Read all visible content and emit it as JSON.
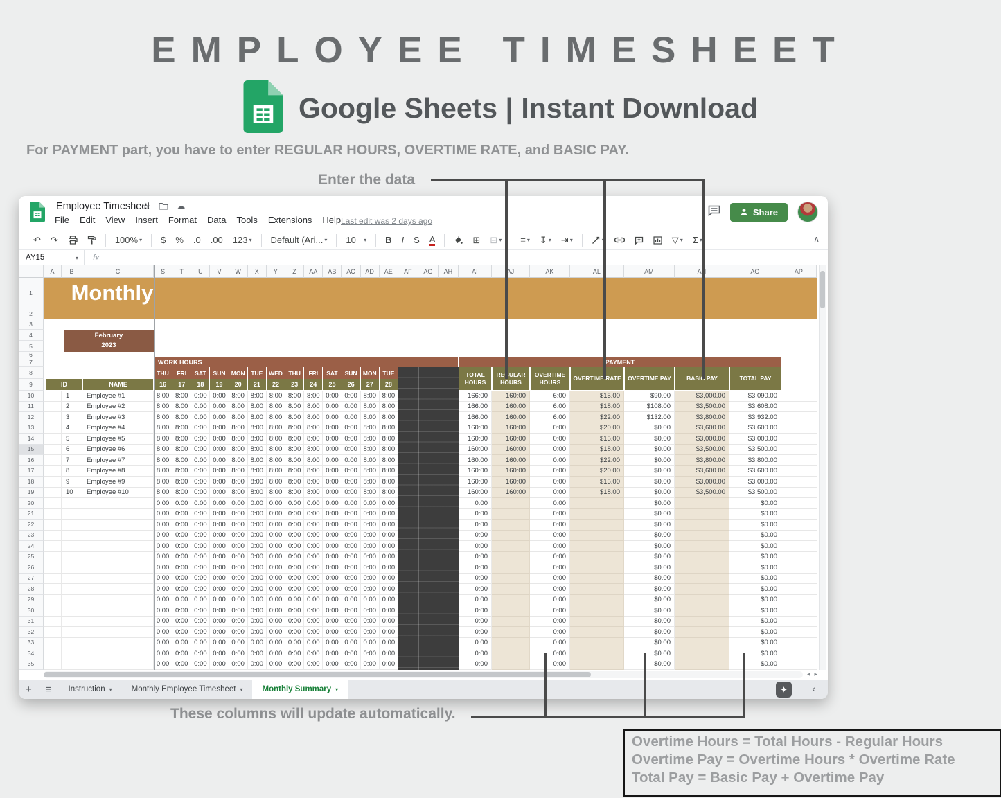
{
  "page": {
    "title": "EMPLOYEE TIMESHEET",
    "subtitle": "Google Sheets | Instant Download",
    "instruction": "For PAYMENT part, you have to enter REGULAR HOURS, OVERTIME RATE, and BASIC PAY.",
    "annotation_top": "Enter the data",
    "annotation_bottom": "These columns will update automatically.",
    "formula_box": [
      "Overtime Hours = Total Hours - Regular Hours",
      "Overtime Pay = Overtime Hours * Overtime Rate",
      "Total Pay = Basic Pay + Overtime Pay"
    ]
  },
  "colors": {
    "accent_tan": "#CE9B51",
    "brown": "#9B5F47",
    "month_brown": "#8A5A44",
    "olive": "#7B7845",
    "input_beige": "#EDE5D6",
    "dark_cell": "#3D3D3D",
    "sheets_green": "#23A566",
    "share_green": "#468B4A",
    "active_tab_green": "#188038"
  },
  "icons": {
    "undo": "↶",
    "redo": "↷",
    "borders": "⊞",
    "align": "≡",
    "valign": "↧",
    "wrap": "⇥",
    "filter": "▽",
    "functions": "Σ",
    "dropdown": "▾",
    "collapse": "∧",
    "star": "☆",
    "cloud": "☁",
    "add_sheet": "+",
    "all_sheets": "≡",
    "explore": "✦",
    "back": "‹",
    "scroll_left": "◂",
    "scroll_right": "▸"
  },
  "app": {
    "doc_title": "Employee Timesheet",
    "menus": [
      "File",
      "Edit",
      "View",
      "Insert",
      "Format",
      "Data",
      "Tools",
      "Extensions",
      "Help"
    ],
    "last_edit": "Last edit was 2 days ago",
    "share_label": "Share",
    "name_box": "AY15",
    "fx_label": "fx",
    "toolbar": {
      "zoom": "100%",
      "currency": "$",
      "percent": "%",
      "dec0": ".0",
      "dec00": ".00",
      "fmt123": "123",
      "font": "Default (Ari...",
      "font_size": "10",
      "bold": "B",
      "italic": "I",
      "strike": "S",
      "text_color": "A"
    },
    "tabs": [
      {
        "label": "Instruction",
        "active": false
      },
      {
        "label": "Monthly Employee Timesheet",
        "active": false
      },
      {
        "label": "Monthly Summary",
        "active": true
      }
    ]
  },
  "sheet": {
    "frozen_columns": [
      "A",
      "B",
      "C"
    ],
    "scroll_columns": [
      "S",
      "T",
      "U",
      "V",
      "W",
      "X",
      "Y",
      "Z",
      "AA",
      "AB",
      "AC",
      "AD",
      "AE",
      "AF",
      "AG",
      "AH",
      "AI",
      "AJ",
      "AK",
      "AL",
      "AM",
      "AN",
      "AO",
      "AP"
    ],
    "visible_rows": 35,
    "selected_row": 15,
    "banner": "Monthly",
    "month": "February",
    "year": "2023",
    "work_hours_label": "WORK HOURS",
    "payment_label": "PAYMENT",
    "id_label": "ID",
    "name_label": "NAME",
    "day_names": [
      "THU",
      "FRI",
      "SAT",
      "SUN",
      "MON",
      "TUE",
      "WED",
      "THU",
      "FRI",
      "SAT",
      "SUN",
      "MON",
      "TUE"
    ],
    "day_dates": [
      "16",
      "17",
      "18",
      "19",
      "20",
      "21",
      "22",
      "23",
      "24",
      "25",
      "26",
      "27",
      "28"
    ],
    "value_headers": [
      "TOTAL HOURS",
      "REGULAR HOURS",
      "OVERTIME HOURS",
      "OVERTIME RATE",
      "OVERTIME PAY",
      "BASIC PAY",
      "TOTAL PAY"
    ],
    "employees": [
      {
        "id": "1",
        "name": "Employee #1",
        "hours": [
          "8:00",
          "8:00",
          "0:00",
          "0:00",
          "8:00",
          "8:00",
          "8:00",
          "8:00",
          "8:00",
          "0:00",
          "0:00",
          "8:00",
          "8:00"
        ],
        "values": [
          "166:00",
          "160:00",
          "6:00",
          "$15.00",
          "$90.00",
          "$3,000.00",
          "$3,090.00"
        ]
      },
      {
        "id": "2",
        "name": "Employee #2",
        "hours": [
          "8:00",
          "8:00",
          "0:00",
          "0:00",
          "8:00",
          "8:00",
          "8:00",
          "8:00",
          "8:00",
          "0:00",
          "0:00",
          "8:00",
          "8:00"
        ],
        "values": [
          "166:00",
          "160:00",
          "6:00",
          "$18.00",
          "$108.00",
          "$3,500.00",
          "$3,608.00"
        ]
      },
      {
        "id": "3",
        "name": "Employee #3",
        "hours": [
          "8:00",
          "8:00",
          "0:00",
          "0:00",
          "8:00",
          "8:00",
          "8:00",
          "8:00",
          "8:00",
          "0:00",
          "0:00",
          "8:00",
          "8:00"
        ],
        "values": [
          "166:00",
          "160:00",
          "6:00",
          "$22.00",
          "$132.00",
          "$3,800.00",
          "$3,932.00"
        ]
      },
      {
        "id": "4",
        "name": "Employee #4",
        "hours": [
          "8:00",
          "8:00",
          "0:00",
          "0:00",
          "8:00",
          "8:00",
          "8:00",
          "8:00",
          "8:00",
          "0:00",
          "0:00",
          "8:00",
          "8:00"
        ],
        "values": [
          "160:00",
          "160:00",
          "0:00",
          "$20.00",
          "$0.00",
          "$3,600.00",
          "$3,600.00"
        ]
      },
      {
        "id": "5",
        "name": "Employee #5",
        "hours": [
          "8:00",
          "8:00",
          "0:00",
          "0:00",
          "8:00",
          "8:00",
          "8:00",
          "8:00",
          "8:00",
          "0:00",
          "0:00",
          "8:00",
          "8:00"
        ],
        "values": [
          "160:00",
          "160:00",
          "0:00",
          "$15.00",
          "$0.00",
          "$3,000.00",
          "$3,000.00"
        ]
      },
      {
        "id": "6",
        "name": "Employee #6",
        "hours": [
          "8:00",
          "8:00",
          "0:00",
          "0:00",
          "8:00",
          "8:00",
          "8:00",
          "8:00",
          "8:00",
          "0:00",
          "0:00",
          "8:00",
          "8:00"
        ],
        "values": [
          "160:00",
          "160:00",
          "0:00",
          "$18.00",
          "$0.00",
          "$3,500.00",
          "$3,500.00"
        ]
      },
      {
        "id": "7",
        "name": "Employee #7",
        "hours": [
          "8:00",
          "8:00",
          "0:00",
          "0:00",
          "8:00",
          "8:00",
          "8:00",
          "8:00",
          "8:00",
          "0:00",
          "0:00",
          "8:00",
          "8:00"
        ],
        "values": [
          "160:00",
          "160:00",
          "0:00",
          "$22.00",
          "$0.00",
          "$3,800.00",
          "$3,800.00"
        ]
      },
      {
        "id": "8",
        "name": "Employee #8",
        "hours": [
          "8:00",
          "8:00",
          "0:00",
          "0:00",
          "8:00",
          "8:00",
          "8:00",
          "8:00",
          "8:00",
          "0:00",
          "0:00",
          "8:00",
          "8:00"
        ],
        "values": [
          "160:00",
          "160:00",
          "0:00",
          "$20.00",
          "$0.00",
          "$3,600.00",
          "$3,600.00"
        ]
      },
      {
        "id": "9",
        "name": "Employee #9",
        "hours": [
          "8:00",
          "8:00",
          "0:00",
          "0:00",
          "8:00",
          "8:00",
          "8:00",
          "8:00",
          "8:00",
          "0:00",
          "0:00",
          "8:00",
          "8:00"
        ],
        "values": [
          "160:00",
          "160:00",
          "0:00",
          "$15.00",
          "$0.00",
          "$3,000.00",
          "$3,000.00"
        ]
      },
      {
        "id": "10",
        "name": "Employee #10",
        "hours": [
          "8:00",
          "8:00",
          "0:00",
          "0:00",
          "8:00",
          "8:00",
          "8:00",
          "8:00",
          "8:00",
          "0:00",
          "0:00",
          "8:00",
          "8:00"
        ],
        "values": [
          "160:00",
          "160:00",
          "0:00",
          "$18.00",
          "$0.00",
          "$3,500.00",
          "$3,500.00"
        ]
      }
    ],
    "empty_row": {
      "hours": [
        "0:00",
        "0:00",
        "0:00",
        "0:00",
        "0:00",
        "0:00",
        "0:00",
        "0:00",
        "0:00",
        "0:00",
        "0:00",
        "0:00",
        "0:00"
      ],
      "values": [
        "0:00",
        "",
        "0:00",
        "",
        "$0.00",
        "",
        "$0.00"
      ]
    },
    "empty_row_count": 16
  }
}
